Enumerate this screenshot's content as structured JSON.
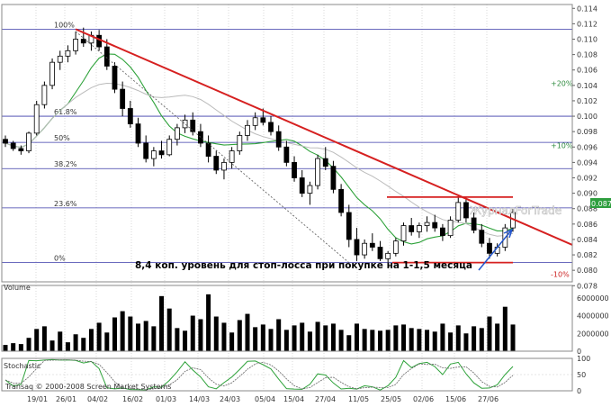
{
  "chart_data": [
    {
      "type": "candlestick",
      "title": "",
      "ylim": [
        0.0785,
        0.1145
      ],
      "yticks": [
        "0.114",
        "0.112",
        "0.110",
        "0.108",
        "0.106",
        "0.104",
        "0.102",
        "0.100",
        "0.098",
        "0.096",
        "0.094",
        "0.092",
        "0.090",
        "0.088",
        "0.086",
        "0.084",
        "0.082",
        "0.080",
        "0.078"
      ],
      "x_tick_labels": [
        "19/01",
        "26/01",
        "04/02",
        "16/02",
        "01/03",
        "14/03",
        "24/03",
        "05/04",
        "15/04",
        "27/04",
        "11/05",
        "25/05",
        "02/06",
        "15/06",
        "27/06"
      ],
      "last_price": "0.08747",
      "fib_levels": [
        {
          "label": "100%",
          "value": 0.1113
        },
        {
          "label": "61.8%",
          "value": 0.1
        },
        {
          "label": "50%",
          "value": 0.0966
        },
        {
          "label": "38.2%",
          "value": 0.0932
        },
        {
          "label": "23.6%",
          "value": 0.0881
        },
        {
          "label": "0%",
          "value": 0.081
        }
      ],
      "pct_labels": [
        {
          "label": "+20%",
          "value": 0.1043,
          "positive": true
        },
        {
          "label": "+10%",
          "value": 0.0962,
          "positive": true
        },
        {
          "label": "-10%",
          "value": 0.0795,
          "positive": false
        }
      ],
      "annotation": "8,4 коп. уровень для стоп-лосса при покупке на 1-1,5 месяца",
      "watermark": "ЖурналForTrade",
      "candles": [
        [
          0.097,
          0.0975,
          0.096,
          0.0965
        ],
        [
          0.0965,
          0.0968,
          0.0955,
          0.0958
        ],
        [
          0.0958,
          0.0962,
          0.095,
          0.0955
        ],
        [
          0.0955,
          0.098,
          0.0952,
          0.0978
        ],
        [
          0.0978,
          0.102,
          0.0975,
          0.1015
        ],
        [
          0.1015,
          0.1045,
          0.101,
          0.104
        ],
        [
          0.104,
          0.1075,
          0.1035,
          0.107
        ],
        [
          0.107,
          0.1085,
          0.106,
          0.1078
        ],
        [
          0.1078,
          0.1092,
          0.107,
          0.1085
        ],
        [
          0.1085,
          0.111,
          0.108,
          0.11
        ],
        [
          0.11,
          0.1115,
          0.109,
          0.1095
        ],
        [
          0.1095,
          0.111,
          0.1085,
          0.1105
        ],
        [
          0.1105,
          0.1112,
          0.1085,
          0.109
        ],
        [
          0.109,
          0.11,
          0.106,
          0.1065
        ],
        [
          0.1065,
          0.107,
          0.103,
          0.1035
        ],
        [
          0.1035,
          0.1045,
          0.1,
          0.101
        ],
        [
          0.101,
          0.102,
          0.0985,
          0.099
        ],
        [
          0.099,
          0.0998,
          0.096,
          0.0965
        ],
        [
          0.0965,
          0.0975,
          0.094,
          0.0945
        ],
        [
          0.0945,
          0.096,
          0.0935,
          0.0955
        ],
        [
          0.0955,
          0.0968,
          0.0945,
          0.095
        ],
        [
          0.095,
          0.0975,
          0.0948,
          0.097
        ],
        [
          0.097,
          0.099,
          0.0962,
          0.0985
        ],
        [
          0.0985,
          0.1002,
          0.0978,
          0.0995
        ],
        [
          0.0995,
          0.1005,
          0.0975,
          0.098
        ],
        [
          0.098,
          0.099,
          0.096,
          0.0965
        ],
        [
          0.0965,
          0.0975,
          0.094,
          0.0948
        ],
        [
          0.0948,
          0.0955,
          0.0925,
          0.093
        ],
        [
          0.093,
          0.0945,
          0.0918,
          0.094
        ],
        [
          0.094,
          0.096,
          0.0932,
          0.0955
        ],
        [
          0.0955,
          0.098,
          0.095,
          0.0975
        ],
        [
          0.0975,
          0.0995,
          0.0968,
          0.0988
        ],
        [
          0.0988,
          0.1005,
          0.0982,
          0.0998
        ],
        [
          0.0998,
          0.101,
          0.0988,
          0.0992
        ],
        [
          0.0992,
          0.1,
          0.0975,
          0.098
        ],
        [
          0.098,
          0.0988,
          0.0955,
          0.096
        ],
        [
          0.096,
          0.0968,
          0.0935,
          0.094
        ],
        [
          0.094,
          0.0948,
          0.0915,
          0.092
        ],
        [
          0.092,
          0.093,
          0.0895,
          0.09
        ],
        [
          0.09,
          0.0915,
          0.0885,
          0.091
        ],
        [
          0.091,
          0.095,
          0.0905,
          0.0945
        ],
        [
          0.0945,
          0.096,
          0.093,
          0.0935
        ],
        [
          0.0935,
          0.0942,
          0.09,
          0.0905
        ],
        [
          0.0905,
          0.0912,
          0.087,
          0.0875
        ],
        [
          0.0875,
          0.0885,
          0.083,
          0.084
        ],
        [
          0.084,
          0.0855,
          0.0812,
          0.082
        ],
        [
          0.082,
          0.084,
          0.0815,
          0.0835
        ],
        [
          0.0835,
          0.0848,
          0.0825,
          0.083
        ],
        [
          0.083,
          0.0838,
          0.0812,
          0.0815
        ],
        [
          0.0815,
          0.0825,
          0.0805,
          0.0822
        ],
        [
          0.0822,
          0.0842,
          0.0818,
          0.0838
        ],
        [
          0.0838,
          0.0862,
          0.0832,
          0.0858
        ],
        [
          0.0858,
          0.0868,
          0.0845,
          0.085
        ],
        [
          0.085,
          0.0862,
          0.0842,
          0.0858
        ],
        [
          0.0858,
          0.087,
          0.085,
          0.0862
        ],
        [
          0.0862,
          0.0872,
          0.085,
          0.0855
        ],
        [
          0.0855,
          0.086,
          0.0838,
          0.0845
        ],
        [
          0.0845,
          0.087,
          0.0842,
          0.0865
        ],
        [
          0.0865,
          0.0895,
          0.0862,
          0.0888
        ],
        [
          0.0888,
          0.0895,
          0.0862,
          0.0868
        ],
        [
          0.0868,
          0.0875,
          0.0848,
          0.0852
        ],
        [
          0.0852,
          0.086,
          0.083,
          0.0835
        ],
        [
          0.0835,
          0.0842,
          0.0815,
          0.0822
        ],
        [
          0.0822,
          0.0835,
          0.0818,
          0.083
        ],
        [
          0.083,
          0.086,
          0.0825,
          0.0855
        ],
        [
          0.0855,
          0.088,
          0.085,
          0.0875
        ]
      ],
      "volume": {
        "label": "Volume",
        "yticks": [
          "6000000",
          "4000000",
          "2000000",
          "0"
        ],
        "ylim": [
          0,
          7400000
        ],
        "values": [
          700000,
          900000,
          800000,
          1500000,
          2500000,
          2800000,
          1200000,
          2200000,
          1000000,
          1900000,
          1500000,
          2500000,
          3200000,
          2100000,
          3800000,
          4500000,
          3900000,
          3100000,
          3400000,
          2800000,
          6200000,
          4800000,
          2600000,
          2300000,
          4000000,
          3600000,
          6400000,
          3900000,
          3200000,
          2100000,
          3500000,
          4200000,
          2700000,
          3000000,
          2500000,
          3600000,
          2400000,
          2900000,
          3200000,
          2200000,
          3300000,
          2900000,
          3100000,
          2400000,
          1800000,
          3100000,
          2500000,
          2400000,
          2300000,
          2400000,
          2900000,
          3000000,
          2600000,
          2500000,
          2400000,
          2200000,
          3100000,
          2100000,
          2900000,
          2000000,
          2800000,
          2600000,
          3900000,
          3100000,
          5000000,
          3000000
        ]
      },
      "stochastic": {
        "label": "Stochastic",
        "yticks": [
          "100",
          "50",
          "0"
        ],
        "credit": "Transaq © 2000-2008 Screen Market Systems"
      }
    }
  ]
}
